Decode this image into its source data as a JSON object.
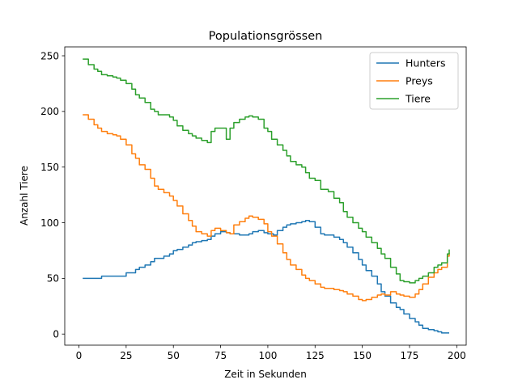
{
  "chart_data": {
    "type": "line",
    "title": "Populationsgrössen",
    "xlabel": "Zeit in Sekunden",
    "ylabel": "Anzahl Tiere",
    "xlim": [
      -7.5,
      205
    ],
    "ylim": [
      -10,
      258
    ],
    "xticks": [
      0,
      25,
      50,
      75,
      100,
      125,
      150,
      175,
      200
    ],
    "yticks": [
      0,
      50,
      100,
      150,
      200,
      250
    ],
    "grid": false,
    "legend": "top-right",
    "series": [
      {
        "name": "Hunters",
        "color": "#1f77b4",
        "x": [
          2,
          5,
          10,
          12,
          15,
          20,
          22,
          25,
          28,
          30,
          32,
          35,
          38,
          40,
          42,
          45,
          48,
          50,
          52,
          55,
          58,
          60,
          62,
          65,
          68,
          70,
          72,
          75,
          78,
          80,
          82,
          85,
          88,
          90,
          92,
          95,
          98,
          100,
          103,
          105,
          108,
          110,
          112,
          115,
          118,
          120,
          122,
          125,
          128,
          130,
          132,
          135,
          138,
          140,
          142,
          145,
          148,
          150,
          152,
          155,
          158,
          160,
          162,
          165,
          168,
          170,
          172,
          175,
          178,
          180,
          182,
          185,
          188,
          190,
          192,
          195,
          196
        ],
        "y": [
          50,
          50,
          50,
          52,
          52,
          52,
          52,
          55,
          55,
          58,
          60,
          62,
          65,
          68,
          68,
          70,
          72,
          75,
          76,
          78,
          80,
          82,
          83,
          84,
          85,
          88,
          90,
          92,
          91,
          90,
          90,
          89,
          89,
          90,
          92,
          93,
          91,
          90,
          89,
          93,
          96,
          98,
          99,
          100,
          101,
          102,
          101,
          96,
          90,
          89,
          89,
          87,
          85,
          82,
          78,
          73,
          67,
          62,
          57,
          52,
          45,
          38,
          34,
          28,
          24,
          22,
          18,
          14,
          11,
          8,
          5,
          4,
          3,
          2,
          1,
          1,
          1
        ]
      },
      {
        "name": "Preys",
        "color": "#ff7f0e",
        "x": [
          2,
          5,
          8,
          10,
          12,
          15,
          18,
          20,
          22,
          25,
          28,
          30,
          32,
          35,
          38,
          40,
          42,
          45,
          48,
          50,
          52,
          55,
          58,
          60,
          62,
          65,
          68,
          70,
          72,
          75,
          78,
          80,
          82,
          85,
          88,
          90,
          92,
          95,
          98,
          100,
          102,
          105,
          108,
          110,
          112,
          115,
          118,
          120,
          122,
          125,
          128,
          130,
          132,
          135,
          138,
          140,
          142,
          145,
          148,
          150,
          152,
          155,
          158,
          160,
          162,
          165,
          168,
          170,
          172,
          175,
          178,
          180,
          182,
          185,
          188,
          190,
          192,
          195,
          196
        ],
        "y": [
          197,
          193,
          188,
          185,
          182,
          180,
          179,
          178,
          175,
          170,
          162,
          158,
          152,
          148,
          140,
          133,
          130,
          127,
          124,
          120,
          115,
          108,
          102,
          97,
          92,
          90,
          88,
          93,
          95,
          93,
          91,
          90,
          98,
          101,
          104,
          106,
          105,
          103,
          99,
          92,
          88,
          81,
          73,
          67,
          62,
          58,
          53,
          50,
          48,
          45,
          42,
          41,
          41,
          40,
          39,
          38,
          36,
          34,
          31,
          30,
          31,
          33,
          35,
          36,
          35,
          38,
          36,
          35,
          34,
          33,
          36,
          40,
          45,
          51,
          55,
          58,
          60,
          70,
          73
        ]
      },
      {
        "name": "Tiere",
        "color": "#2ca02c",
        "x": [
          2,
          5,
          8,
          10,
          12,
          15,
          18,
          20,
          22,
          25,
          28,
          30,
          32,
          35,
          38,
          40,
          42,
          45,
          48,
          50,
          52,
          55,
          58,
          60,
          62,
          65,
          68,
          70,
          72,
          75,
          78,
          80,
          82,
          85,
          88,
          90,
          92,
          95,
          98,
          100,
          102,
          105,
          108,
          110,
          112,
          115,
          118,
          120,
          122,
          125,
          128,
          130,
          132,
          135,
          138,
          140,
          142,
          145,
          148,
          150,
          152,
          155,
          158,
          160,
          162,
          165,
          168,
          170,
          172,
          175,
          178,
          180,
          182,
          185,
          188,
          190,
          192,
          195,
          196
        ],
        "y": [
          247,
          242,
          238,
          236,
          233,
          232,
          231,
          230,
          228,
          225,
          220,
          215,
          212,
          208,
          202,
          200,
          197,
          197,
          195,
          192,
          187,
          183,
          180,
          178,
          176,
          174,
          172,
          182,
          185,
          185,
          175,
          185,
          190,
          193,
          195,
          196,
          195,
          193,
          185,
          182,
          175,
          170,
          165,
          160,
          155,
          152,
          150,
          145,
          140,
          138,
          130,
          130,
          128,
          122,
          118,
          110,
          105,
          100,
          95,
          92,
          87,
          82,
          77,
          72,
          68,
          60,
          54,
          48,
          47,
          46,
          48,
          50,
          52,
          55,
          60,
          62,
          64,
          72,
          76
        ]
      }
    ]
  }
}
